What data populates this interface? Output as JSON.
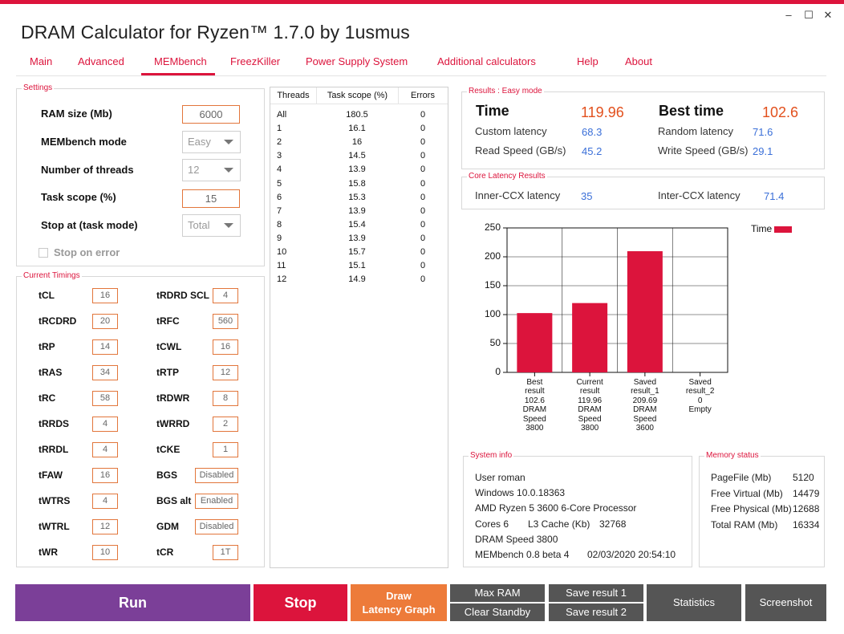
{
  "window": {
    "title": "DRAM Calculator for Ryzen™ 1.7.0 by 1usmus",
    "controls": {
      "minimize": "–",
      "maximize": "☐",
      "close": "✕"
    }
  },
  "tabs": [
    "Main",
    "Advanced",
    "MEMbench",
    "FreezKiller",
    "Power Supply System",
    "Additional calculators",
    "Help",
    "About"
  ],
  "settings": {
    "legend": "Settings",
    "ram_size_label": "RAM size (Mb)",
    "ram_size": "6000",
    "mode_label": "MEMbench mode",
    "mode": "Easy",
    "threads_label": "Number of threads",
    "threads": "12",
    "task_scope_label": "Task scope (%)",
    "task_scope": "15",
    "stop_at_label": "Stop at (task mode)",
    "stop_at": "Total",
    "stop_on_error_label": "Stop on error"
  },
  "timings": {
    "legend": "Current Timings",
    "left": [
      {
        "name": "tCL",
        "value": "16"
      },
      {
        "name": "tRCDRD",
        "value": "20"
      },
      {
        "name": "tRP",
        "value": "14"
      },
      {
        "name": "tRAS",
        "value": "34"
      },
      {
        "name": "tRC",
        "value": "58"
      },
      {
        "name": "tRRDS",
        "value": "4"
      },
      {
        "name": "tRRDL",
        "value": "4"
      },
      {
        "name": "tFAW",
        "value": "16"
      },
      {
        "name": "tWTRS",
        "value": "4"
      },
      {
        "name": "tWTRL",
        "value": "12"
      },
      {
        "name": "tWR",
        "value": "10"
      }
    ],
    "right": [
      {
        "name": "tRDRD SCL",
        "value": "4"
      },
      {
        "name": "tRFC",
        "value": "560"
      },
      {
        "name": "tCWL",
        "value": "16"
      },
      {
        "name": "tRTP",
        "value": "12"
      },
      {
        "name": "tRDWR",
        "value": "8"
      },
      {
        "name": "tWRRD",
        "value": "2"
      },
      {
        "name": "tCKE",
        "value": "1"
      },
      {
        "name": "BGS",
        "value": "Disabled"
      },
      {
        "name": "BGS alt",
        "value": "Enabled"
      },
      {
        "name": "GDM",
        "value": "Disabled"
      },
      {
        "name": "tCR",
        "value": "1T"
      }
    ]
  },
  "threads_table": {
    "headers": [
      "Threads",
      "Task scope (%)",
      "Errors"
    ],
    "rows": [
      [
        "All",
        "180.5",
        "0"
      ],
      [
        "1",
        "16.1",
        "0"
      ],
      [
        "2",
        "16",
        "0"
      ],
      [
        "3",
        "14.5",
        "0"
      ],
      [
        "4",
        "13.9",
        "0"
      ],
      [
        "5",
        "15.8",
        "0"
      ],
      [
        "6",
        "15.3",
        "0"
      ],
      [
        "7",
        "13.9",
        "0"
      ],
      [
        "8",
        "15.4",
        "0"
      ],
      [
        "9",
        "13.9",
        "0"
      ],
      [
        "10",
        "15.7",
        "0"
      ],
      [
        "11",
        "15.1",
        "0"
      ],
      [
        "12",
        "14.9",
        "0"
      ]
    ]
  },
  "results": {
    "legend": "Results : Easy mode",
    "time_label": "Time",
    "time": "119.96",
    "best_time_label": "Best time",
    "best_time": "102.6",
    "custom_latency_label": "Custom latency",
    "custom_latency": "68.3",
    "random_latency_label": "Random latency",
    "random_latency": "71.6",
    "read_speed_label": "Read Speed (GB/s)",
    "read_speed": "45.2",
    "write_speed_label": "Write Speed (GB/s)",
    "write_speed": "29.1"
  },
  "core_latency": {
    "legend": "Core Latency Results",
    "inner_label": "Inner-CCX latency",
    "inner": "35",
    "inter_label": "Inter-CCX latency",
    "inter": "71.4"
  },
  "chart_data": {
    "type": "bar",
    "legend": [
      "Time"
    ],
    "legend_position": "top-right",
    "color": "#dc143c",
    "ylim": [
      0,
      250
    ],
    "yticks": [
      "0",
      "50",
      "100",
      "150",
      "200",
      "250"
    ],
    "categories": [
      [
        "Best",
        "result",
        "102.6",
        "DRAM",
        "Speed",
        "3800"
      ],
      [
        "Current",
        "result",
        "119.96",
        "DRAM",
        "Speed",
        "3800"
      ],
      [
        "Saved",
        "result_1",
        "209.69",
        "DRAM",
        "Speed",
        "3600"
      ],
      [
        "Saved",
        "result_2",
        "0",
        "Empty"
      ]
    ],
    "values": [
      102.6,
      119.96,
      209.69,
      0
    ],
    "grid": true
  },
  "system_info": {
    "legend": "System info",
    "user": "User roman",
    "os": "Windows 10.0.18363",
    "cpu": "AMD Ryzen 5 3600 6-Core Processor",
    "cores": "Cores 6",
    "l3_label": "L3 Cache (Kb)",
    "l3": "32768",
    "dram_speed": "DRAM Speed 3800",
    "membench": "MEMbench 0.8 beta 4",
    "datetime": "02/03/2020 20:54:10"
  },
  "memory_status": {
    "legend": "Memory status",
    "rows": [
      {
        "label": "PageFile (Mb)",
        "value": "5120"
      },
      {
        "label": "Free Virtual (Mb)",
        "value": "14479"
      },
      {
        "label": "Free Physical (Mb)",
        "value": "12688"
      },
      {
        "label": "Total RAM (Mb)",
        "value": "16334"
      }
    ]
  },
  "buttons": {
    "run": "Run",
    "stop": "Stop",
    "draw1": "Draw",
    "draw2": "Latency Graph",
    "max_ram": "Max RAM",
    "clear_standby": "Clear Standby",
    "save1": "Save result 1",
    "save2": "Save result 2",
    "statistics": "Statistics",
    "screenshot": "Screenshot"
  },
  "colors": {
    "accent": "#dc143c",
    "orange": "#e2763b",
    "run": "#7b3f98",
    "dark": "#555555",
    "value_blue": "#3a6fd8"
  }
}
